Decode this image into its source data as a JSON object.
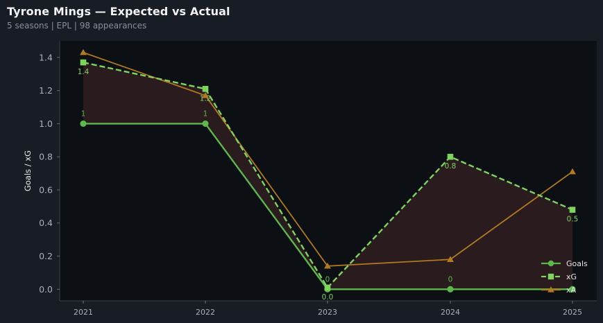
{
  "header": {
    "title": "Tyrone Mings — Expected vs Actual",
    "subtitle": "5 seasons | EPL | 98 appearances"
  },
  "colors": {
    "page_bg": "#181c24",
    "plot_bg": "#0c0f14",
    "goals": "#5cb84a",
    "xg": "#7fd35f",
    "xa": "#b07a1e",
    "fill": "#2c1c1f",
    "tick_text": "#aab0b8",
    "ylabel_text": "#e8e8e8"
  },
  "chart_data": {
    "type": "line",
    "x": [
      "2021",
      "2022",
      "2023",
      "2024",
      "2025"
    ],
    "ylabel": "Goals / xG",
    "ylim": [
      -0.07,
      1.5
    ],
    "yticks": [
      "0.0",
      "0.2",
      "0.4",
      "0.6",
      "0.8",
      "1.0",
      "1.2",
      "1.4"
    ],
    "series": [
      {
        "name": "Goals",
        "values": [
          1,
          1,
          0,
          0,
          0
        ],
        "labels": [
          "1",
          "1",
          "0",
          "0",
          ""
        ],
        "marker": "circle",
        "style": "solid"
      },
      {
        "name": "xG",
        "values": [
          1.37,
          1.21,
          0.01,
          0.8,
          0.48
        ],
        "labels": [
          "1.4",
          "1.2",
          "0.0",
          "0.8",
          "0.5"
        ],
        "marker": "square",
        "style": "dashed"
      },
      {
        "name": "xA",
        "values": [
          1.43,
          1.17,
          0.14,
          0.18,
          0.71
        ],
        "marker": "triangle",
        "style": "solid"
      }
    ],
    "fill_between": [
      "Goals",
      "xG"
    ],
    "legend": "bottom-right",
    "grid": false
  }
}
